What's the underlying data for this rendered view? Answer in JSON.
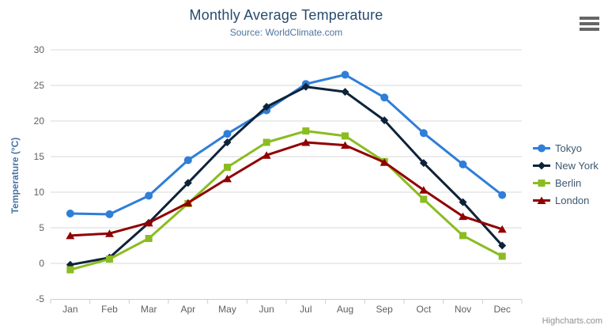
{
  "header": {
    "title": "Monthly Average Temperature",
    "subtitle": "Source: WorldClimate.com"
  },
  "toolbar": {
    "export_menu_icon": "hamburger-icon"
  },
  "credits": {
    "label": "Highcharts.com"
  },
  "chart_data": {
    "type": "line",
    "title": "Monthly Average Temperature",
    "subtitle": "Source: WorldClimate.com",
    "categories": [
      "Jan",
      "Feb",
      "Mar",
      "Apr",
      "May",
      "Jun",
      "Jul",
      "Aug",
      "Sep",
      "Oct",
      "Nov",
      "Dec"
    ],
    "series": [
      {
        "name": "Tokyo",
        "color": "#2f7ed8",
        "marker": "circle",
        "values": [
          7.0,
          6.9,
          9.5,
          14.5,
          18.2,
          21.5,
          25.2,
          26.5,
          23.3,
          18.3,
          13.9,
          9.6
        ]
      },
      {
        "name": "New York",
        "color": "#0d233a",
        "marker": "diamond",
        "values": [
          -0.2,
          0.8,
          5.7,
          11.3,
          17.0,
          22.0,
          24.8,
          24.1,
          20.1,
          14.1,
          8.6,
          2.5
        ]
      },
      {
        "name": "Berlin",
        "color": "#8bbc21",
        "marker": "square",
        "values": [
          -0.9,
          0.6,
          3.5,
          8.4,
          13.5,
          17.0,
          18.6,
          17.9,
          14.3,
          9.0,
          3.9,
          1.0
        ]
      },
      {
        "name": "London",
        "color": "#910000",
        "marker": "triangle",
        "values": [
          3.9,
          4.2,
          5.7,
          8.5,
          11.9,
          15.2,
          17.0,
          16.6,
          14.2,
          10.3,
          6.6,
          4.8
        ]
      }
    ],
    "xlabel": "",
    "ylabel": "Temperature (°C)",
    "ylim": [
      -5,
      30
    ],
    "ytick_step": 5,
    "grid": true,
    "legend_position": "right",
    "styles": {
      "grid_color": "#d8d8d8",
      "axis_line_color": "#c0d0e0",
      "axis_label_color": "#606060",
      "title_color": "#274b6d",
      "subtitle_color": "#4d759e",
      "y_axis_title_color": "#4572a7",
      "legend_text_color": "#3e576f",
      "credits_color": "#909090"
    }
  }
}
